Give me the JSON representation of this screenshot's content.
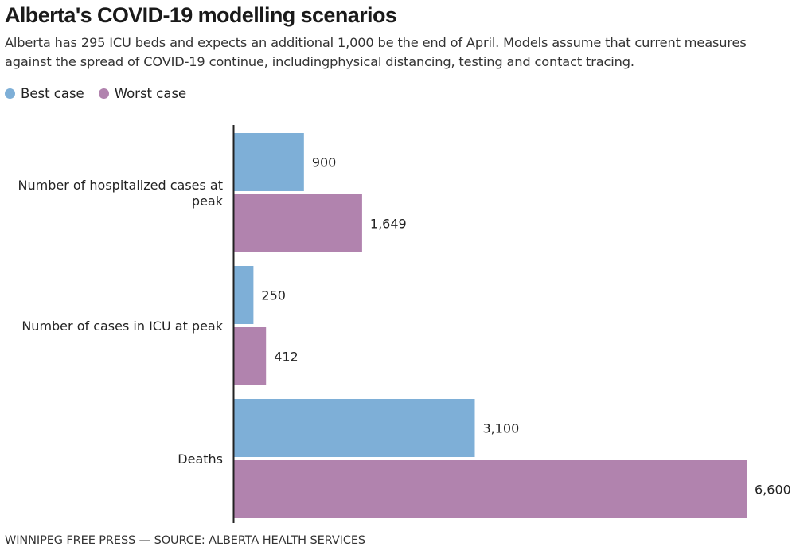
{
  "header": {
    "title": "Alberta's COVID-19 modelling scenarios",
    "subtitle": "Alberta has 295 ICU beds and expects an additional 1,000 be the end of April. Models assume that current measures against the spread of COVID-19 continue, includingphysical distancing, testing and contact tracing."
  },
  "legend": {
    "items": [
      {
        "label": "Best case",
        "color": "#7eafd7"
      },
      {
        "label": "Worst case",
        "color": "#b183ae"
      }
    ]
  },
  "footer": {
    "credit": "WINNIPEG FREE PRESS — SOURCE: ALBERTA HEALTH SERVICES"
  },
  "chart_data": {
    "type": "bar",
    "orientation": "horizontal",
    "title": "Alberta's COVID-19 modelling scenarios",
    "xlabel": "",
    "ylabel": "",
    "grid": false,
    "legend_position": "top-left",
    "categories": [
      [
        "Number of hospitalized cases at",
        "peak"
      ],
      [
        "Number of cases in ICU at peak"
      ],
      [
        "Deaths"
      ]
    ],
    "series": [
      {
        "name": "Best case",
        "color": "#7eafd7",
        "values": [
          900,
          250,
          3100
        ],
        "labels": [
          "900",
          "250",
          "3,100"
        ]
      },
      {
        "name": "Worst case",
        "color": "#b183ae",
        "values": [
          1649,
          412,
          6600
        ],
        "labels": [
          "1,649",
          "412",
          "6,600"
        ]
      },
      {
        "name": "axis",
        "color": "#222222"
      }
    ],
    "xlim": [
      0,
      6600
    ]
  }
}
